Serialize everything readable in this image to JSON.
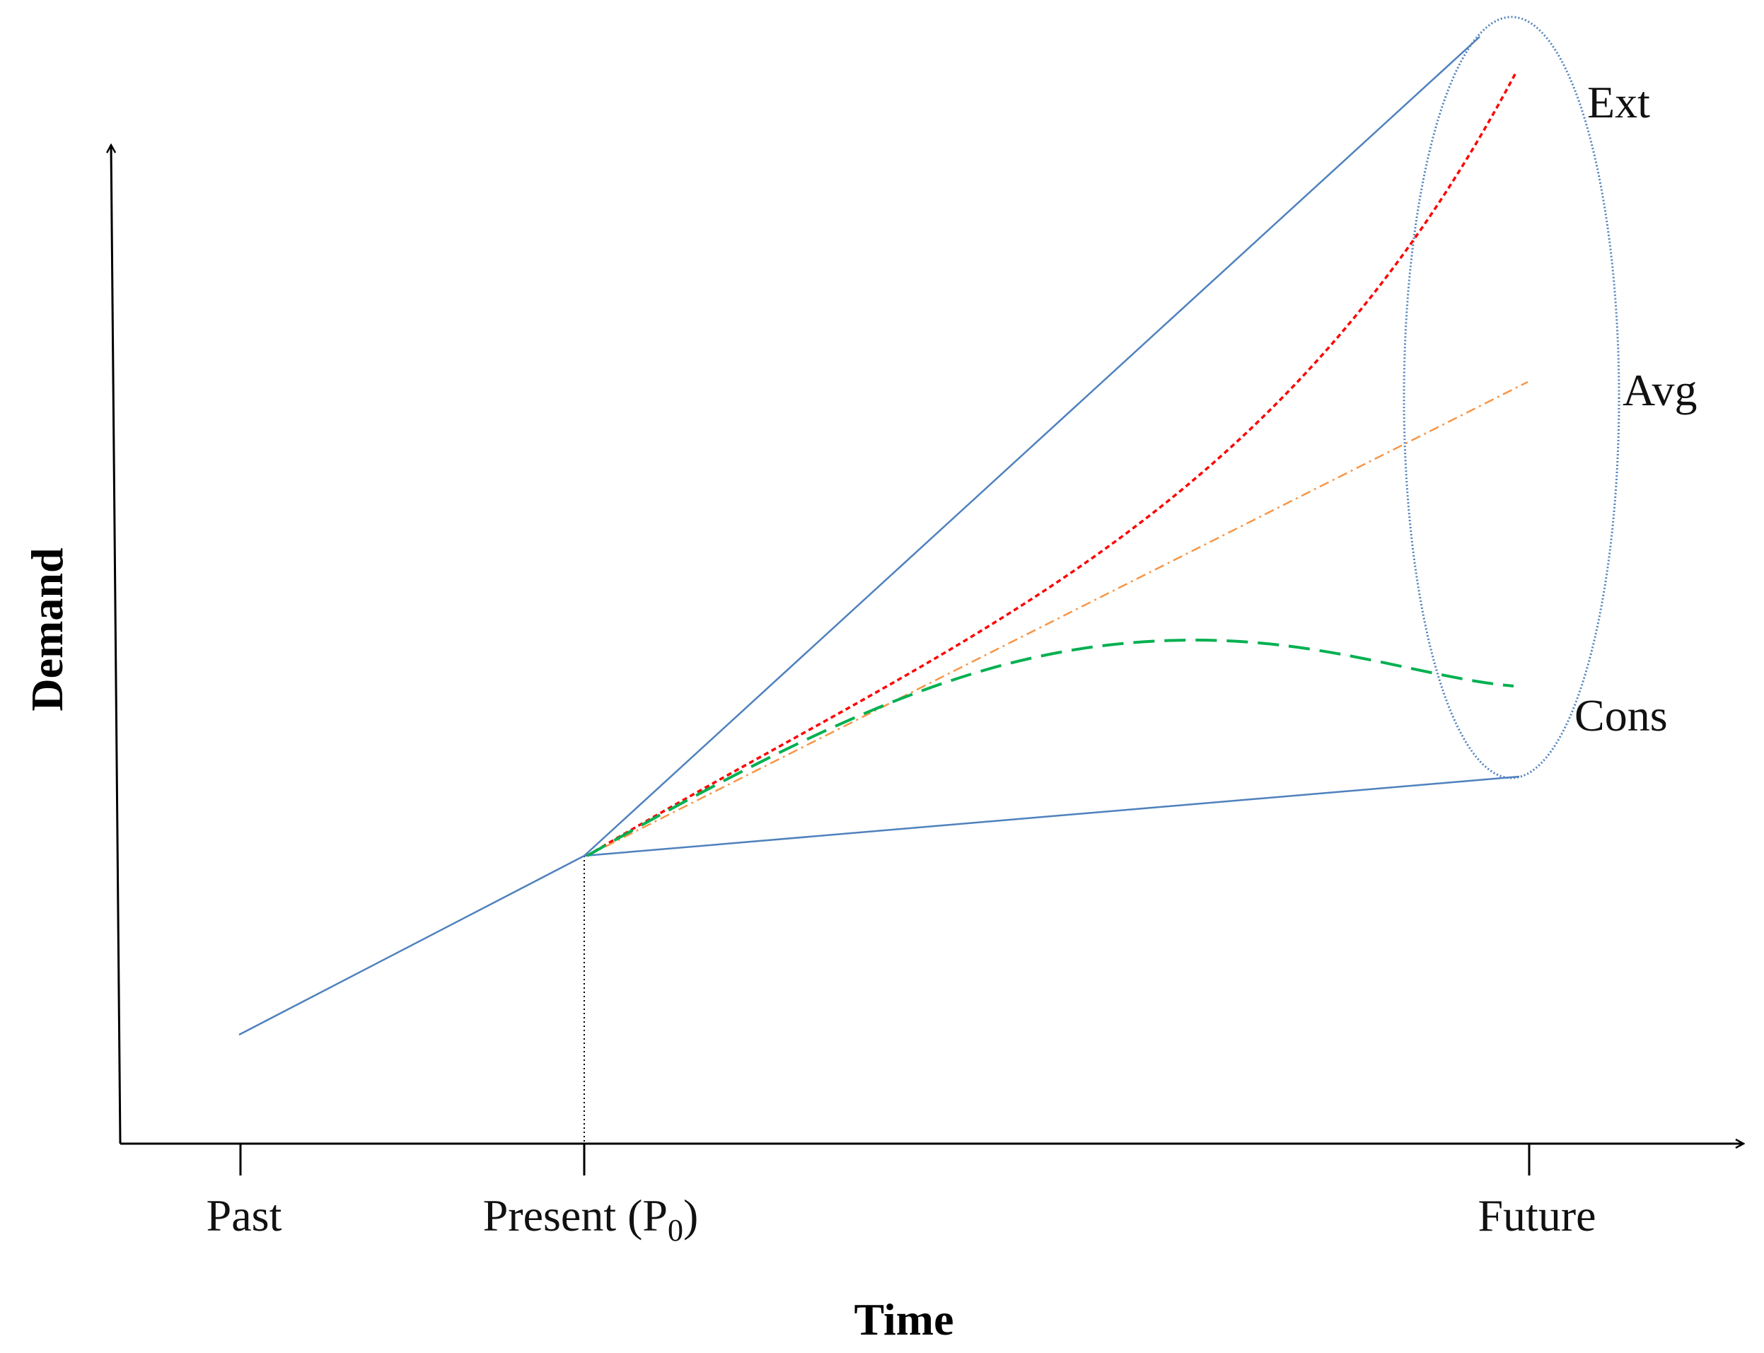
{
  "axes": {
    "x_title": "Time",
    "y_title": "Demand"
  },
  "ticks": {
    "past": "Past",
    "present": "Present (P",
    "present_sub": "0",
    "present_close": ")",
    "future": "Future"
  },
  "scenarios": {
    "ext": "Ext",
    "avg": "Avg",
    "cons": "Cons"
  },
  "colors": {
    "axis": "#000000",
    "cone": "#4f81bd",
    "ellipse": "#4f81bd",
    "ext": "#ff0000",
    "avg": "#f79646",
    "cons": "#00b050",
    "guide": "#000000"
  }
}
